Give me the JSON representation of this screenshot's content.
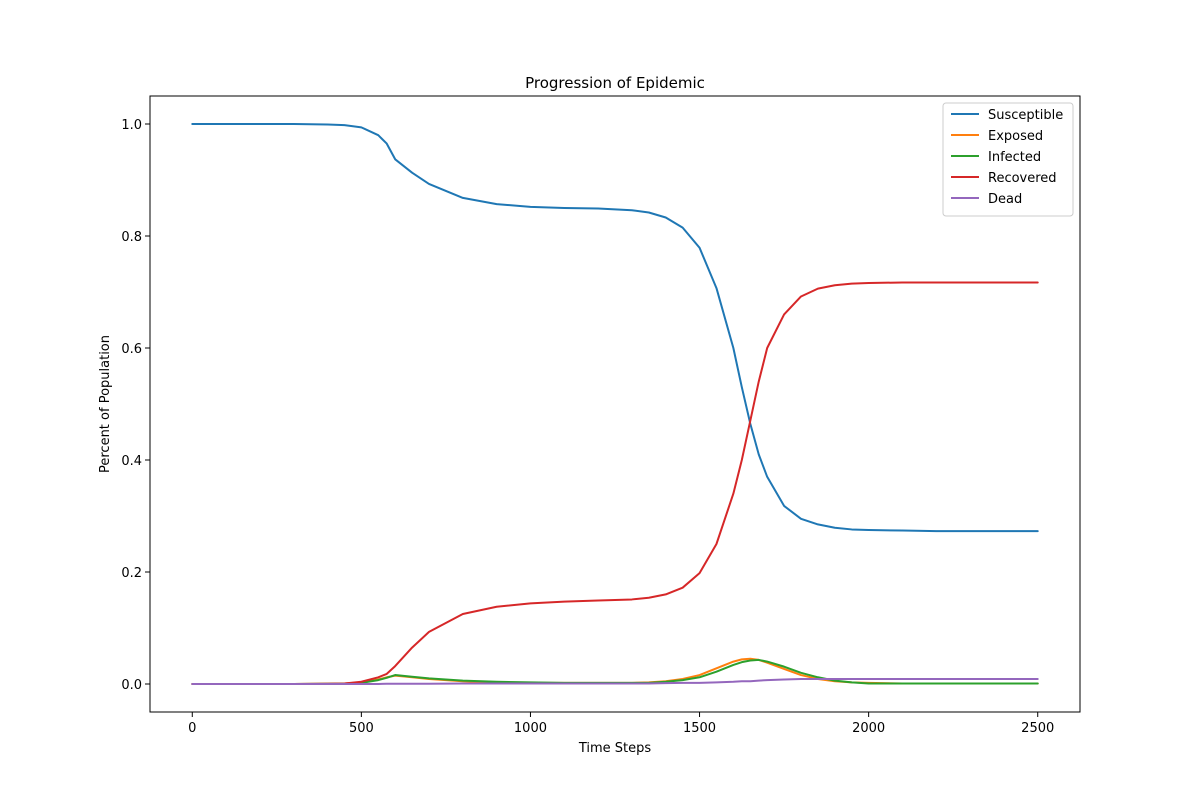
{
  "chart_data": {
    "type": "line",
    "title": "Progression of Epidemic",
    "xlabel": "Time Steps",
    "ylabel": "Percent of Population",
    "xlim": [
      -125,
      2625
    ],
    "ylim": [
      -0.05,
      1.05
    ],
    "xticks": [
      0,
      500,
      1000,
      1500,
      2000,
      2500
    ],
    "yticks": [
      0.0,
      0.2,
      0.4,
      0.6,
      0.8,
      1.0
    ],
    "xtick_labels": [
      "0",
      "500",
      "1000",
      "1500",
      "2000",
      "2500"
    ],
    "ytick_labels": [
      "0.0",
      "0.2",
      "0.4",
      "0.6",
      "0.8",
      "1.0"
    ],
    "grid": false,
    "legend_position": "top-right",
    "x": [
      0,
      100,
      200,
      300,
      400,
      450,
      500,
      550,
      575,
      600,
      650,
      700,
      800,
      900,
      1000,
      1100,
      1200,
      1300,
      1350,
      1400,
      1450,
      1500,
      1550,
      1600,
      1625,
      1650,
      1675,
      1700,
      1750,
      1800,
      1850,
      1900,
      1950,
      2000,
      2100,
      2200,
      2300,
      2400,
      2500
    ],
    "series": [
      {
        "name": "Susceptible",
        "color": "#1f77b4",
        "values": [
          1.0,
          1.0,
          1.0,
          1.0,
          0.999,
          0.998,
          0.994,
          0.98,
          0.965,
          0.937,
          0.913,
          0.893,
          0.868,
          0.857,
          0.852,
          0.85,
          0.849,
          0.846,
          0.842,
          0.833,
          0.815,
          0.779,
          0.707,
          0.6,
          0.53,
          0.465,
          0.41,
          0.37,
          0.318,
          0.295,
          0.285,
          0.279,
          0.276,
          0.275,
          0.274,
          0.273,
          0.273,
          0.273,
          0.273
        ]
      },
      {
        "name": "Exposed",
        "color": "#ff7f0e",
        "values": [
          0.0,
          0.0,
          0.0,
          0.0,
          0.0005,
          0.001,
          0.003,
          0.008,
          0.012,
          0.015,
          0.012,
          0.009,
          0.005,
          0.003,
          0.002,
          0.002,
          0.002,
          0.002,
          0.003,
          0.005,
          0.009,
          0.016,
          0.028,
          0.04,
          0.044,
          0.045,
          0.043,
          0.038,
          0.027,
          0.016,
          0.009,
          0.005,
          0.003,
          0.002,
          0.001,
          0.001,
          0.001,
          0.001,
          0.001
        ]
      },
      {
        "name": "Infected",
        "color": "#2ca02c",
        "values": [
          0.0,
          0.0,
          0.0,
          0.0,
          0.0005,
          0.001,
          0.002,
          0.007,
          0.011,
          0.016,
          0.013,
          0.01,
          0.006,
          0.004,
          0.003,
          0.002,
          0.002,
          0.002,
          0.002,
          0.004,
          0.007,
          0.012,
          0.022,
          0.034,
          0.039,
          0.042,
          0.043,
          0.04,
          0.031,
          0.02,
          0.012,
          0.006,
          0.003,
          0.001,
          0.001,
          0.001,
          0.001,
          0.001,
          0.001
        ]
      },
      {
        "name": "Recovered",
        "color": "#d62728",
        "values": [
          0.0,
          0.0,
          0.0,
          0.0,
          0.0005,
          0.001,
          0.004,
          0.012,
          0.018,
          0.032,
          0.065,
          0.093,
          0.125,
          0.138,
          0.144,
          0.147,
          0.149,
          0.151,
          0.154,
          0.16,
          0.172,
          0.198,
          0.25,
          0.34,
          0.4,
          0.47,
          0.54,
          0.6,
          0.66,
          0.692,
          0.706,
          0.712,
          0.715,
          0.716,
          0.717,
          0.717,
          0.717,
          0.717,
          0.717
        ]
      },
      {
        "name": "Dead",
        "color": "#9467bd",
        "values": [
          0.0,
          0.0,
          0.0,
          0.0,
          0.0,
          0.0,
          0.0,
          0.0,
          0.0005,
          0.0005,
          0.0005,
          0.0005,
          0.001,
          0.001,
          0.001,
          0.001,
          0.001,
          0.001,
          0.001,
          0.0015,
          0.002,
          0.002,
          0.003,
          0.004,
          0.005,
          0.005,
          0.006,
          0.007,
          0.008,
          0.009,
          0.009,
          0.009,
          0.009,
          0.009,
          0.009,
          0.009,
          0.009,
          0.009,
          0.009
        ]
      }
    ]
  }
}
